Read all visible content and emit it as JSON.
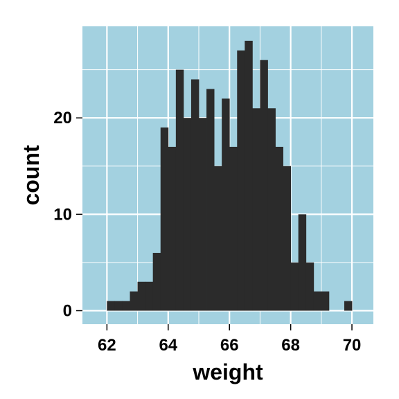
{
  "chart_data": {
    "type": "bar",
    "subtype": "histogram",
    "title": "",
    "xlabel": "weight",
    "ylabel": "count",
    "bin_width": 0.25,
    "bin_starts": [
      62.0,
      62.25,
      62.5,
      62.75,
      63.0,
      63.25,
      63.5,
      63.75,
      64.0,
      64.25,
      64.5,
      64.75,
      65.0,
      65.25,
      65.5,
      65.75,
      66.0,
      66.25,
      66.5,
      66.75,
      67.0,
      67.25,
      67.5,
      67.75,
      68.0,
      68.25,
      68.5,
      68.75,
      69.0,
      69.25,
      69.5,
      69.75
    ],
    "values": [
      1,
      1,
      1,
      2,
      3,
      3,
      6,
      19,
      17,
      25,
      20,
      24,
      20,
      23,
      15,
      22,
      17,
      27,
      28,
      21,
      26,
      21,
      17,
      15,
      5,
      10,
      5,
      2,
      2,
      0,
      0,
      1
    ],
    "xlim": [
      61.2,
      70.7
    ],
    "ylim": [
      -1.4,
      29.5
    ],
    "x_ticks": [
      62,
      64,
      66,
      68,
      70
    ],
    "y_ticks": [
      0,
      10,
      20
    ],
    "x_tick_labels": [
      "62",
      "64",
      "66",
      "68",
      "70"
    ],
    "y_tick_labels": [
      "0",
      "10",
      "20"
    ],
    "grid": true,
    "legend": "none",
    "colors": {
      "panel_background": "#a3d1e0",
      "grid": "#ffffff",
      "bar_fill": "#2b2b2b",
      "text": "#000000"
    }
  }
}
